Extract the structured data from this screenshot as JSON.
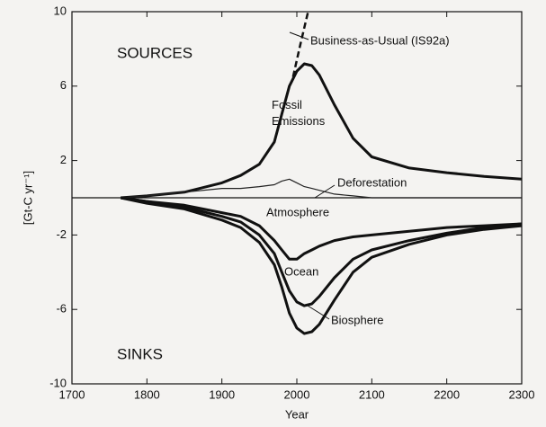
{
  "chart_data": {
    "type": "line",
    "xlabel": "Year",
    "ylabel": "[Gt-C yr⁻¹]",
    "annotations": [
      "SOURCES",
      "SINKS"
    ],
    "xlim": [
      1700,
      2300
    ],
    "xticks": [
      1700,
      1800,
      1900,
      2000,
      2100,
      2200,
      2300
    ],
    "ylim": [
      -10,
      10
    ],
    "yticks": [
      10,
      6,
      2,
      -2,
      -6,
      -10
    ],
    "x": [
      1765,
      1800,
      1850,
      1900,
      1925,
      1950,
      1970,
      1980,
      1990,
      2000,
      2010,
      2020,
      2030,
      2050,
      2075,
      2100,
      2150,
      2200,
      2250,
      2300
    ],
    "series": [
      {
        "name": "Fossil Emissions",
        "color": "#111111",
        "width": 3,
        "values": [
          0,
          0.1,
          0.3,
          0.8,
          1.2,
          1.8,
          3.0,
          4.5,
          6.0,
          6.8,
          7.2,
          7.1,
          6.6,
          5.0,
          3.2,
          2.2,
          1.6,
          1.35,
          1.15,
          1.0
        ]
      },
      {
        "name": "Deforestation",
        "color": "#222222",
        "width": 1.2,
        "values": [
          0,
          0.1,
          0.3,
          0.5,
          0.5,
          0.6,
          0.7,
          0.9,
          1.0,
          0.8,
          0.6,
          0.5,
          0.4,
          0.2,
          0.1,
          0,
          0,
          0,
          0,
          0
        ]
      },
      {
        "name": "Atmosphere",
        "color": "#111111",
        "width": 3,
        "values": [
          0,
          -0.2,
          -0.4,
          -0.8,
          -1.0,
          -1.5,
          -2.3,
          -2.8,
          -3.3,
          -3.3,
          -3.0,
          -2.8,
          -2.6,
          -2.3,
          -2.1,
          -2.0,
          -1.8,
          -1.6,
          -1.5,
          -1.4
        ]
      },
      {
        "name": "Ocean",
        "color": "#111111",
        "width": 3,
        "values": [
          0,
          -0.2,
          -0.5,
          -1.0,
          -1.3,
          -2.0,
          -3.0,
          -4.0,
          -5.0,
          -5.6,
          -5.8,
          -5.7,
          -5.3,
          -4.3,
          -3.3,
          -2.8,
          -2.3,
          -1.9,
          -1.6,
          -1.4
        ]
      },
      {
        "name": "Biosphere",
        "color": "#111111",
        "width": 3,
        "values": [
          0,
          -0.3,
          -0.6,
          -1.2,
          -1.6,
          -2.4,
          -3.6,
          -4.8,
          -6.2,
          -7.0,
          -7.3,
          -7.2,
          -6.8,
          -5.5,
          -4.0,
          -3.2,
          -2.5,
          -2.0,
          -1.7,
          -1.5
        ]
      },
      {
        "name": "Business-as-Usual (IS92a)",
        "color": "#111111",
        "width": 2.5,
        "dashed": true,
        "x": [
          1995,
          2005,
          2015
        ],
        "values": [
          6.5,
          8.3,
          10
        ]
      }
    ]
  }
}
